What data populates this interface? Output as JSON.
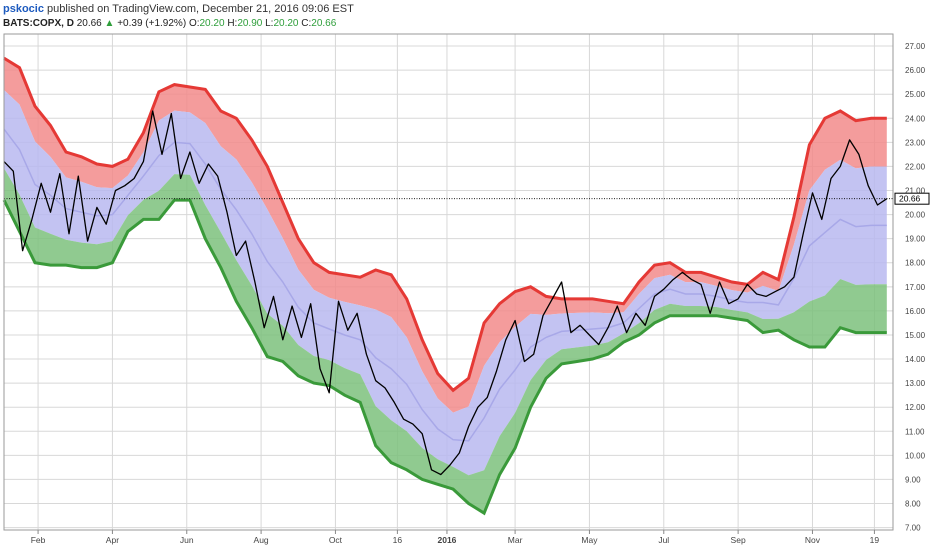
{
  "header": {
    "author": "pskocic",
    "published_text": "published on TradingView.com, December 21, 2016 09:06 EST",
    "symbol": "BATS:COPX, D",
    "last": "20.66",
    "change_arrow": "▲",
    "change": "+0.39 (+1.92%)",
    "o_label": "O:",
    "o_value": "20.20",
    "h_label": "H:",
    "h_value": "20.90",
    "l_label": "L:",
    "l_value": "20.20",
    "c_label": "C:",
    "c_value": "20.66"
  },
  "colors": {
    "price_line": "#000000",
    "upper_band_line": "#e53935",
    "upper_fill": "#f28b8b",
    "inner_fill": "#b9b9f0",
    "lower_fill": "#7cc17c",
    "lower_band_line": "#3a9a3a",
    "grid": "#d8d8d8",
    "axis_text": "#444444",
    "up_text": "#2e9e3a",
    "author": "#1e5bbf"
  },
  "chart_data": {
    "type": "line",
    "ylim": [
      6.9,
      27.5
    ],
    "xlim": [
      0,
      287
    ],
    "grid": true,
    "y_ticks": [
      "7.00",
      "8.00",
      "9.00",
      "10.00",
      "11.00",
      "12.00",
      "13.00",
      "14.00",
      "15.00",
      "16.00",
      "17.00",
      "18.00",
      "19.00",
      "20.00",
      "21.00",
      "22.00",
      "23.00",
      "24.00",
      "25.00",
      "26.00",
      "27.00"
    ],
    "x_ticks": [
      {
        "label": "Feb",
        "x": 11,
        "bold": false
      },
      {
        "label": "Apr",
        "x": 35,
        "bold": false
      },
      {
        "label": "Jun",
        "x": 59,
        "bold": false
      },
      {
        "label": "Aug",
        "x": 83,
        "bold": false
      },
      {
        "label": "Oct",
        "x": 107,
        "bold": false
      },
      {
        "label": "16",
        "x": 127,
        "bold": false
      },
      {
        "label": "2016",
        "x": 143,
        "bold": true
      },
      {
        "label": "Mar",
        "x": 165,
        "bold": false
      },
      {
        "label": "May",
        "x": 189,
        "bold": false
      },
      {
        "label": "Jul",
        "x": 213,
        "bold": false
      },
      {
        "label": "Sep",
        "x": 237,
        "bold": false
      },
      {
        "label": "Nov",
        "x": 261,
        "bold": false
      },
      {
        "label": "19",
        "x": 281,
        "bold": false
      }
    ],
    "last_price": 20.66,
    "last_price_label": "20.66",
    "series": [
      {
        "role": "price",
        "x": [
          0,
          3,
          6,
          9,
          12,
          15,
          18,
          21,
          24,
          27,
          30,
          33,
          36,
          39,
          42,
          45,
          48,
          51,
          54,
          57,
          60,
          63,
          66,
          69,
          72,
          75,
          78,
          81,
          84,
          87,
          90,
          93,
          96,
          99,
          102,
          105,
          108,
          111,
          114,
          117,
          120,
          123,
          126,
          129,
          132,
          135,
          138,
          141,
          144,
          147,
          150,
          153,
          156,
          159,
          162,
          165,
          168,
          171,
          174,
          177,
          180,
          183,
          186,
          189,
          192,
          195,
          198,
          201,
          204,
          207,
          210,
          213,
          216,
          219,
          222,
          225,
          228,
          231,
          234,
          237,
          240,
          243,
          246,
          249,
          252,
          255,
          258,
          261,
          264,
          267,
          270,
          273,
          276,
          279,
          282,
          285
        ],
        "values": [
          22.2,
          21.8,
          18.5,
          19.8,
          21.3,
          20.1,
          21.7,
          19.2,
          21.6,
          18.9,
          20.3,
          19.6,
          21.0,
          21.2,
          21.5,
          22.2,
          24.3,
          22.5,
          24.2,
          21.5,
          22.6,
          21.3,
          22.1,
          21.6,
          20.1,
          18.3,
          18.9,
          17.2,
          15.3,
          16.6,
          14.8,
          16.2,
          14.9,
          16.3,
          13.6,
          12.6,
          16.4,
          15.2,
          15.9,
          14.2,
          13.1,
          12.8,
          12.2,
          11.5,
          11.3,
          10.9,
          9.4,
          9.2,
          9.6,
          10.1,
          11.2,
          12.0,
          12.4,
          13.5,
          14.8,
          15.6,
          13.9,
          14.2,
          15.8,
          16.5,
          17.2,
          15.1,
          15.4,
          15.0,
          14.6,
          15.3,
          16.2,
          15.1,
          15.9,
          15.4,
          16.6,
          16.9,
          17.3,
          17.6,
          17.3,
          17.1,
          15.9,
          17.2,
          16.3,
          16.5,
          17.1,
          16.7,
          16.6,
          16.8,
          17.0,
          17.4,
          19.2,
          20.9,
          19.8,
          21.5,
          22.0,
          23.1,
          22.5,
          21.2,
          20.4,
          20.66
        ]
      },
      {
        "role": "upper_band",
        "x": [
          0,
          5,
          10,
          15,
          20,
          25,
          30,
          35,
          40,
          45,
          50,
          55,
          60,
          65,
          70,
          75,
          80,
          85,
          90,
          95,
          100,
          105,
          110,
          115,
          120,
          125,
          130,
          135,
          140,
          145,
          150,
          155,
          160,
          165,
          170,
          175,
          180,
          185,
          190,
          195,
          200,
          205,
          210,
          215,
          220,
          225,
          230,
          235,
          240,
          245,
          250,
          255,
          260,
          265,
          270,
          275,
          280,
          285
        ],
        "values": [
          26.5,
          26.1,
          24.5,
          23.7,
          22.6,
          22.4,
          22.1,
          22.0,
          22.3,
          23.4,
          25.1,
          25.4,
          25.3,
          25.2,
          24.3,
          24.0,
          23.1,
          22.0,
          20.5,
          19.0,
          18.0,
          17.6,
          17.5,
          17.4,
          17.7,
          17.5,
          16.5,
          14.8,
          13.4,
          12.7,
          13.2,
          15.5,
          16.3,
          16.8,
          17.0,
          16.6,
          16.5,
          16.5,
          16.5,
          16.4,
          16.3,
          17.2,
          17.9,
          18.0,
          17.6,
          17.6,
          17.4,
          17.2,
          17.1,
          17.6,
          17.3,
          19.9,
          22.9,
          24.0,
          24.3,
          23.9,
          24.0,
          24.0
        ]
      },
      {
        "role": "lower_band",
        "x": [
          0,
          5,
          10,
          15,
          20,
          25,
          30,
          35,
          40,
          45,
          50,
          55,
          60,
          65,
          70,
          75,
          80,
          85,
          90,
          95,
          100,
          105,
          110,
          115,
          120,
          125,
          130,
          135,
          140,
          145,
          150,
          155,
          160,
          165,
          170,
          175,
          180,
          185,
          190,
          195,
          200,
          205,
          210,
          215,
          220,
          225,
          230,
          235,
          240,
          245,
          250,
          255,
          260,
          265,
          270,
          275,
          280,
          285
        ],
        "values": [
          20.6,
          19.3,
          18.0,
          17.9,
          17.9,
          17.8,
          17.8,
          18.0,
          19.3,
          19.8,
          19.8,
          20.6,
          20.6,
          19.0,
          17.8,
          16.4,
          15.3,
          14.1,
          13.9,
          13.3,
          13.0,
          12.9,
          12.5,
          12.2,
          10.4,
          9.7,
          9.4,
          9.0,
          8.8,
          8.6,
          8.0,
          7.6,
          9.2,
          10.3,
          12.0,
          13.2,
          13.8,
          13.9,
          14.0,
          14.2,
          14.7,
          15.0,
          15.5,
          15.8,
          15.8,
          15.8,
          15.8,
          15.7,
          15.6,
          15.1,
          15.2,
          14.8,
          14.5,
          14.5,
          15.3,
          15.1,
          15.1,
          15.1
        ]
      }
    ]
  }
}
